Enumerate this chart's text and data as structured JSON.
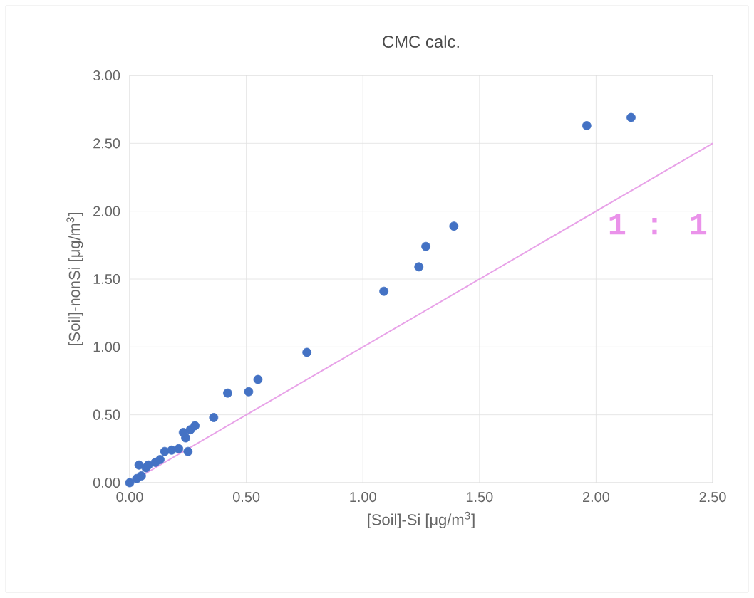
{
  "chart_data": {
    "type": "scatter",
    "title": "CMC calc.",
    "xlabel": "[Soil]-Si  [μg/m$^{3}$]",
    "ylabel": "[Soil]-nonSi [μg/m$^{3}$]",
    "xlim": [
      0,
      2.5
    ],
    "ylim": [
      0,
      3
    ],
    "xticks": [
      {
        "value": 0,
        "label": "0.00"
      },
      {
        "value": 0.5,
        "label": "0.50"
      },
      {
        "value": 1,
        "label": "1.00"
      },
      {
        "value": 1.5,
        "label": "1.50"
      },
      {
        "value": 2,
        "label": "2.00"
      },
      {
        "value": 2.5,
        "label": "2.50"
      }
    ],
    "yticks": [
      {
        "value": 0,
        "label": "0.00"
      },
      {
        "value": 0.5,
        "label": "0.50"
      },
      {
        "value": 1,
        "label": "1.00"
      },
      {
        "value": 1.5,
        "label": "1.50"
      },
      {
        "value": 2,
        "label": "2.00"
      },
      {
        "value": 2.5,
        "label": "2.50"
      },
      {
        "value": 3,
        "label": "3.00"
      }
    ],
    "grid": true,
    "series": [
      {
        "marker": "circle",
        "color": "#4472c4",
        "x": [
          0.0,
          0.01,
          0.02,
          0.03,
          0.05,
          0.04,
          0.07,
          0.08,
          0.11,
          0.13,
          0.15,
          0.18,
          0.21,
          0.25,
          0.24,
          0.23,
          0.26,
          0.28,
          0.36,
          0.42,
          0.51,
          0.55,
          0.76,
          1.09,
          1.24,
          1.27,
          1.39,
          1.96,
          2.15
        ],
        "values": [
          0.0,
          null,
          null,
          0.03,
          0.05,
          0.13,
          0.11,
          0.13,
          0.15,
          0.17,
          0.23,
          0.24,
          0.25,
          0.23,
          0.33,
          0.37,
          0.39,
          0.42,
          0.48,
          0.66,
          0.67,
          0.76,
          0.96,
          1.41,
          1.59,
          1.74,
          1.89,
          2.63,
          2.69
        ]
      },
      {
        "type": "line",
        "marker": "none",
        "name": "1 : 1",
        "color": "#e8a2e8",
        "x": [
          0,
          2.5
        ],
        "values": [
          0,
          2.5
        ]
      }
    ]
  }
}
